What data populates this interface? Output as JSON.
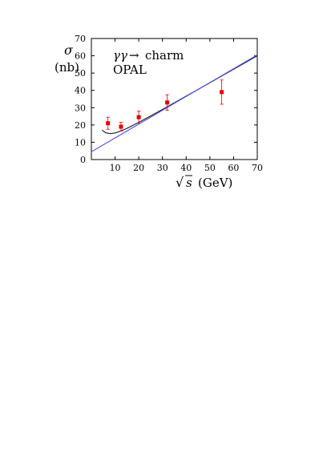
{
  "chart_data": {
    "type": "scatter",
    "annotations": {
      "process_prefix": "γγ",
      "process_arrow": "→",
      "process_suffix": "charm",
      "experiment": "OPAL"
    },
    "ylabel": {
      "symbol": "σ",
      "unit": "(nb)"
    },
    "xlabel": {
      "sqrt": "√",
      "symbol": "s",
      "unit": "(GeV)"
    },
    "xlim": [
      0,
      70
    ],
    "ylim": [
      0,
      70
    ],
    "xticks": [
      10,
      20,
      30,
      40,
      50,
      60,
      70
    ],
    "yticks": [
      0,
      10,
      20,
      30,
      40,
      50,
      60,
      70
    ],
    "grid": false,
    "series": [
      {
        "kind": "points",
        "color": "#e00000",
        "points": [
          {
            "x": 7,
            "y": 21,
            "yerr": [
              3.5,
              3.5
            ]
          },
          {
            "x": 12.5,
            "y": 19,
            "yerr": [
              2.5,
              2.5
            ]
          },
          {
            "x": 20,
            "y": 24.5,
            "yerr": [
              3.5,
              3.5
            ]
          },
          {
            "x": 32,
            "y": 33,
            "yerr": [
              4.5,
              4.5
            ]
          },
          {
            "x": 55,
            "y": 39,
            "yerr": [
              7,
              7
            ]
          }
        ]
      },
      {
        "kind": "curve",
        "color": "#1a1a1a",
        "points": [
          [
            4.5,
            17
          ],
          [
            6,
            15.5
          ],
          [
            8,
            15
          ],
          [
            10,
            15.4
          ],
          [
            12,
            16.3
          ],
          [
            15,
            18
          ],
          [
            20,
            21.5
          ],
          [
            25,
            25.2
          ],
          [
            30,
            29
          ],
          [
            35,
            32.8
          ],
          [
            40,
            36.7
          ],
          [
            45,
            40.5
          ],
          [
            50,
            44.4
          ],
          [
            55,
            48.3
          ],
          [
            60,
            52.2
          ],
          [
            65,
            56.1
          ],
          [
            70,
            60
          ]
        ]
      },
      {
        "kind": "line",
        "color": "#4a4ae6",
        "points": [
          [
            0,
            4.5
          ],
          [
            70,
            60.5
          ]
        ]
      }
    ]
  }
}
